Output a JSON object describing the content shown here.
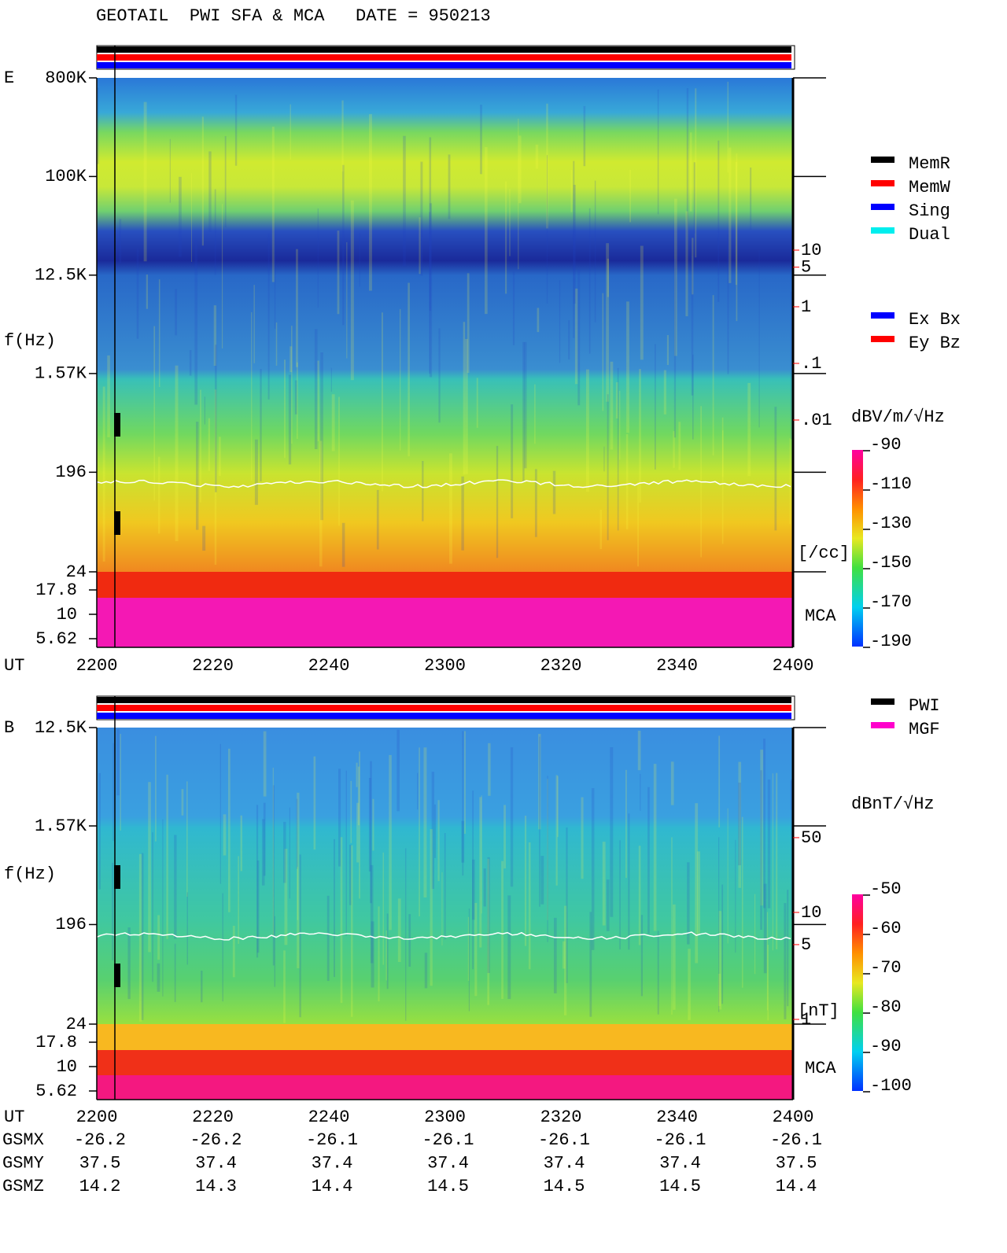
{
  "header": {
    "title": "GEOTAIL  PWI SFA & MCA   DATE = 950213"
  },
  "panels": [
    {
      "label": "E",
      "freq_axis_label": "f(Hz)",
      "time_axis_label": "UT",
      "ylim": [
        24,
        800000
      ],
      "yticks": [
        {
          "value": 800000,
          "label": "800K"
        },
        {
          "value": 100000,
          "label": "100K"
        },
        {
          "value": 12500,
          "label": "12.5K"
        },
        {
          "value": 1570,
          "label": "1.57K"
        },
        196,
        24
      ],
      "mca_ticks": [
        17.8,
        10,
        5.62
      ],
      "mca_label": "MCA",
      "xticks": [
        "2200",
        "2220",
        "2240",
        "2300",
        "2320",
        "2340",
        "2400"
      ],
      "right_ticks": [
        10,
        5,
        1,
        {
          "value": 0.1,
          "label": ".1"
        },
        {
          "value": 0.01,
          "label": ".01"
        }
      ],
      "right_unit": "[/cc]",
      "colorbar": {
        "unit": "dBV/m/√Hz",
        "lim": [
          -190,
          -90
        ],
        "ticks": [
          -90,
          -110,
          -130,
          -150,
          -170,
          -190
        ]
      },
      "legends": [
        [
          {
            "name": "MemR",
            "color": "#000000"
          },
          {
            "name": "MemW",
            "color": "#ff0000"
          },
          {
            "name": "Sing",
            "color": "#0000ff"
          },
          {
            "name": "Dual",
            "color": "#00eeee"
          }
        ],
        [
          {
            "name": "Ex Bx",
            "color": "#0000ff"
          },
          {
            "name": "Ey Bz",
            "color": "#ff0000"
          }
        ]
      ]
    },
    {
      "label": "B",
      "freq_axis_label": "f(Hz)",
      "time_axis_label": "UT",
      "ylim": [
        24,
        12500
      ],
      "yticks": [
        {
          "value": 12500,
          "label": "12.5K"
        },
        {
          "value": 1570,
          "label": "1.57K"
        },
        196,
        24
      ],
      "mca_ticks": [
        17.8,
        10,
        5.62
      ],
      "mca_label": "MCA",
      "xticks": [
        "2200",
        "2220",
        "2240",
        "2300",
        "2320",
        "2340",
        "2400"
      ],
      "right_ticks": [
        50,
        10,
        5,
        1
      ],
      "right_unit": "[nT]",
      "colorbar": {
        "unit": "dBnT/√Hz",
        "lim": [
          -100,
          -50
        ],
        "ticks": [
          -50,
          -60,
          -70,
          -80,
          -90,
          -100
        ]
      },
      "legends": [
        [
          {
            "name": "PWI",
            "color": "#000000"
          },
          {
            "name": "MGF",
            "color": "#ff00cc"
          }
        ]
      ]
    }
  ],
  "orbit": {
    "rows": [
      {
        "label": "GSMX",
        "values": [
          -26.2,
          -26.2,
          -26.1,
          -26.1,
          -26.1,
          -26.1,
          -26.1
        ]
      },
      {
        "label": "GSMY",
        "values": [
          37.5,
          37.4,
          37.4,
          37.4,
          37.4,
          37.4,
          37.5
        ]
      },
      {
        "label": "GSMZ",
        "values": [
          14.2,
          14.3,
          14.4,
          14.5,
          14.5,
          14.5,
          14.4
        ]
      }
    ]
  }
}
